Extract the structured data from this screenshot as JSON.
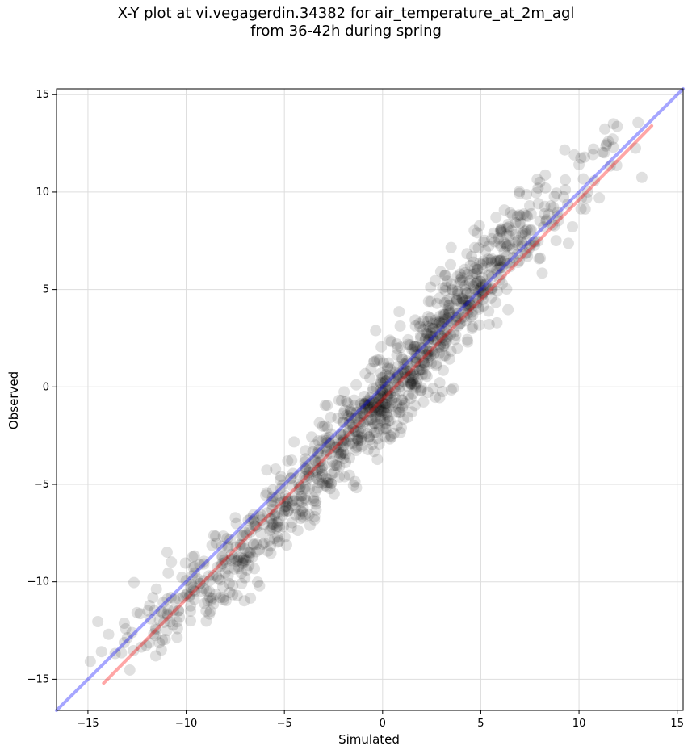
{
  "title_line1": "X-Y plot at vi.vegagerdin.34382 for air_temperature_at_2m_agl",
  "title_line2": "from 36-42h during spring",
  "chart_data": {
    "type": "scatter",
    "title": "X-Y plot at vi.vegagerdin.34382 for air_temperature_at_2m_agl from 36-42h during spring",
    "xlabel": "Simulated",
    "ylabel": "Observed",
    "xlim": [
      -16.6,
      15.3
    ],
    "ylim": [
      -16.6,
      15.3
    ],
    "xticks": [
      -15,
      -10,
      -5,
      0,
      5,
      10,
      15
    ],
    "yticks": [
      -15,
      -10,
      -5,
      0,
      5,
      10,
      15
    ],
    "xtick_labels": [
      "−15",
      "−10",
      "−5",
      "0",
      "5",
      "10",
      "15"
    ],
    "ytick_labels": [
      "−15",
      "−10",
      "−5",
      "0",
      "5",
      "10",
      "15"
    ],
    "grid": true,
    "point_color": "#000000",
    "point_alpha": 0.12,
    "clusters": [
      {
        "cx": 6.0,
        "cy": 7.0,
        "n": 180,
        "sx": 1.6,
        "sy": 1.6
      },
      {
        "cx": 3.0,
        "cy": 3.0,
        "n": 200,
        "sx": 1.5,
        "sy": 1.6
      },
      {
        "cx": 0.0,
        "cy": -1.0,
        "n": 320,
        "sx": 1.6,
        "sy": 1.7
      },
      {
        "cx": -4.0,
        "cy": -5.0,
        "n": 180,
        "sx": 1.8,
        "sy": 1.7
      },
      {
        "cx": -7.5,
        "cy": -9.0,
        "n": 140,
        "sx": 1.6,
        "sy": 1.7
      },
      {
        "cx": -11.0,
        "cy": -11.5,
        "n": 70,
        "sx": 1.5,
        "sy": 1.6
      },
      {
        "cx": 10.5,
        "cy": 11.0,
        "n": 40,
        "sx": 1.6,
        "sy": 1.6
      }
    ],
    "series": [
      {
        "type": "line",
        "x": [
          -16.6,
          15.3
        ],
        "y": [
          -16.6,
          15.3
        ],
        "color": "#0000ff",
        "alpha": 0.35
      },
      {
        "type": "line",
        "x": [
          -14.2,
          13.7
        ],
        "y": [
          -15.2,
          13.4
        ],
        "color": "#ff0000",
        "alpha": 0.35
      }
    ]
  }
}
